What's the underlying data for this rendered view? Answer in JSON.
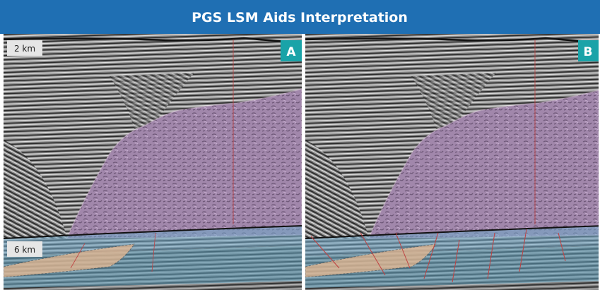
{
  "header": {
    "title": "PGS LSM Aids Interpretation"
  },
  "panels": [
    {
      "label": "A",
      "scale_labels": [
        "2 km",
        "6 km"
      ]
    },
    {
      "label": "B"
    }
  ]
}
